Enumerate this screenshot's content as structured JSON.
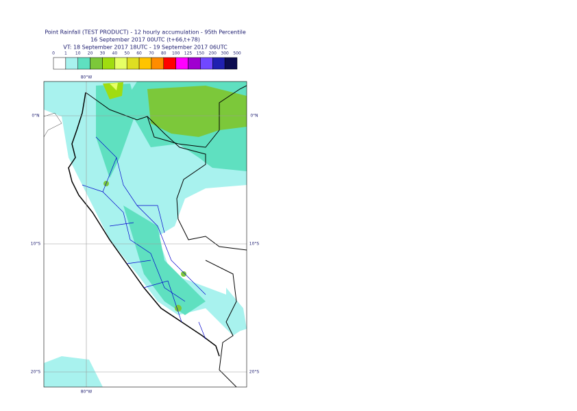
{
  "header": {
    "title": "Point Rainfall (TEST PRODUCT) - 12 hourly accumulation - 95th Percentile",
    "run": "16 September 2017 00UTC (t+66,t+78)",
    "valid": "VT: 18 September 2017 18UTC - 19 September 2017 06UTC"
  },
  "legend": {
    "thresholds": [
      0,
      1,
      10,
      20,
      30,
      40,
      50,
      60,
      70,
      80,
      100,
      125,
      150,
      200,
      300,
      500
    ],
    "colors": [
      "#ffffff",
      "#a8f2ee",
      "#5fe0c0",
      "#7cc83a",
      "#a0dc10",
      "#e6ff66",
      "#dede22",
      "#ffc400",
      "#ff8c00",
      "#ff0000",
      "#ff00ff",
      "#a000d0",
      "#7048ff",
      "#2020b0",
      "#0c0c50"
    ]
  },
  "map": {
    "lon_top": "80°W",
    "lon_bottom": "80°W",
    "lat_labels": [
      {
        "left": "0°N",
        "right": "0°N"
      },
      {
        "left": "10°S",
        "right": "10°S"
      },
      {
        "left": "20°S",
        "right": "20°S"
      }
    ]
  }
}
